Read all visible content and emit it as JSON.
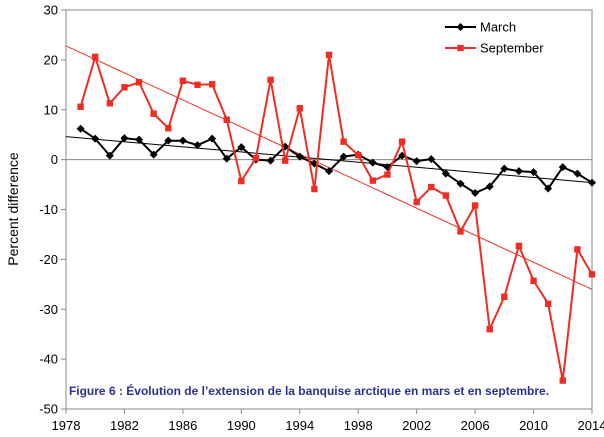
{
  "chart_data": {
    "type": "line",
    "title": "",
    "caption": "Figure 6 : Évolution de l’extension de la banquise arctique en mars et en septembre.",
    "xlabel": "",
    "ylabel": "Percent difference",
    "xlim": [
      1978,
      2014
    ],
    "ylim": [
      -50,
      30
    ],
    "x_ticks": [
      1978,
      1982,
      1986,
      1990,
      1994,
      1998,
      2002,
      2006,
      2010,
      2014
    ],
    "y_ticks": [
      -50,
      -40,
      -30,
      -20,
      -10,
      0,
      10,
      20,
      30
    ],
    "zero_line": true,
    "grid": false,
    "legend_position": "top-right",
    "x": [
      1979,
      1980,
      1981,
      1982,
      1983,
      1984,
      1985,
      1986,
      1987,
      1988,
      1989,
      1990,
      1991,
      1992,
      1993,
      1994,
      1995,
      1996,
      1997,
      1998,
      1999,
      2000,
      2001,
      2002,
      2003,
      2004,
      2005,
      2006,
      2007,
      2008,
      2009,
      2010,
      2011,
      2012,
      2013,
      2014
    ],
    "series": [
      {
        "name": "March",
        "color": "#000000",
        "marker": "diamond",
        "values": [
          6.2,
          4.2,
          0.8,
          4.3,
          4.0,
          1.0,
          3.8,
          3.8,
          2.9,
          4.2,
          0.2,
          2.5,
          0.0,
          -0.2,
          2.6,
          0.6,
          -0.8,
          -2.3,
          0.6,
          1.0,
          -0.6,
          -1.5,
          0.8,
          -0.3,
          0.1,
          -2.8,
          -4.8,
          -6.7,
          -5.4,
          -1.8,
          -2.3,
          -2.5,
          -5.8,
          -1.5,
          -2.8,
          -4.6
        ],
        "trend": {
          "start": [
            1978,
            4.6
          ],
          "end": [
            2014,
            -4.6
          ],
          "color": "#000000"
        }
      },
      {
        "name": "September",
        "color": "#ee2e24",
        "marker": "square",
        "values": [
          10.6,
          20.6,
          11.3,
          14.5,
          15.5,
          9.2,
          6.3,
          15.8,
          15.0,
          15.1,
          8.0,
          -4.3,
          0.3,
          16.0,
          -0.2,
          10.3,
          -5.9,
          21.0,
          3.6,
          0.9,
          -4.2,
          -3.0,
          3.6,
          -8.5,
          -5.5,
          -7.2,
          -14.4,
          -9.2,
          -34.0,
          -27.5,
          -17.3,
          -24.3,
          -28.9,
          -44.3,
          -18.0,
          -23.0
        ],
        "trend": {
          "start": [
            1978,
            22.8
          ],
          "end": [
            2014,
            -26.0
          ],
          "color": "#ee2e24"
        }
      }
    ]
  }
}
